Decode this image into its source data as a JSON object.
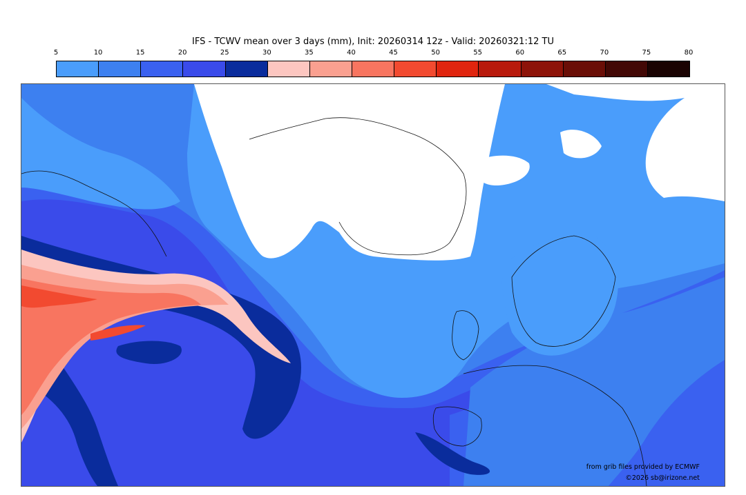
{
  "title": "IFS - TCWV mean over 3 days (mm), Init: 20260314 12z - Valid: 20260321:12 TU",
  "legend": {
    "ticks": [
      "5",
      "10",
      "15",
      "20",
      "25",
      "30",
      "35",
      "40",
      "45",
      "50",
      "55",
      "60",
      "65",
      "70",
      "75",
      "80"
    ],
    "colors": [
      "#4a9dfb",
      "#3d80f0",
      "#3a61f0",
      "#3a4bea",
      "#0a2c9c",
      "#fcc6c0",
      "#faa090",
      "#f87560",
      "#f24a30",
      "#e0250f",
      "#b81a0c",
      "#8d1309",
      "#6a0e07",
      "#420805",
      "#1a0302"
    ]
  },
  "credits": {
    "provider": "from grib files provided by ECMWF",
    "copyright": "©2026 sb@irizone.net"
  }
}
